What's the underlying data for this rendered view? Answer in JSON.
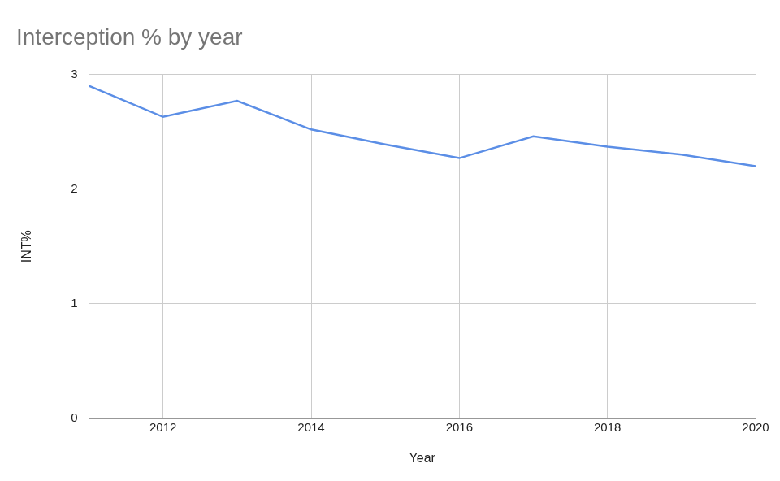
{
  "chart_data": {
    "type": "line",
    "title": "Interception % by year",
    "x_label": "Year",
    "y_label": "INT%",
    "x": [
      2011,
      2012,
      2013,
      2014,
      2015,
      2016,
      2017,
      2018,
      2019,
      2020
    ],
    "values": [
      2.9,
      2.63,
      2.77,
      2.52,
      2.39,
      2.27,
      2.46,
      2.37,
      2.3,
      2.2
    ],
    "color": "#5b8ee6",
    "xlim": [
      2011,
      2020
    ],
    "xticks": [
      2012,
      2014,
      2016,
      2018,
      2020
    ],
    "ylim": [
      0,
      3
    ],
    "yticks": [
      0,
      1,
      2,
      3
    ],
    "grid": true
  }
}
